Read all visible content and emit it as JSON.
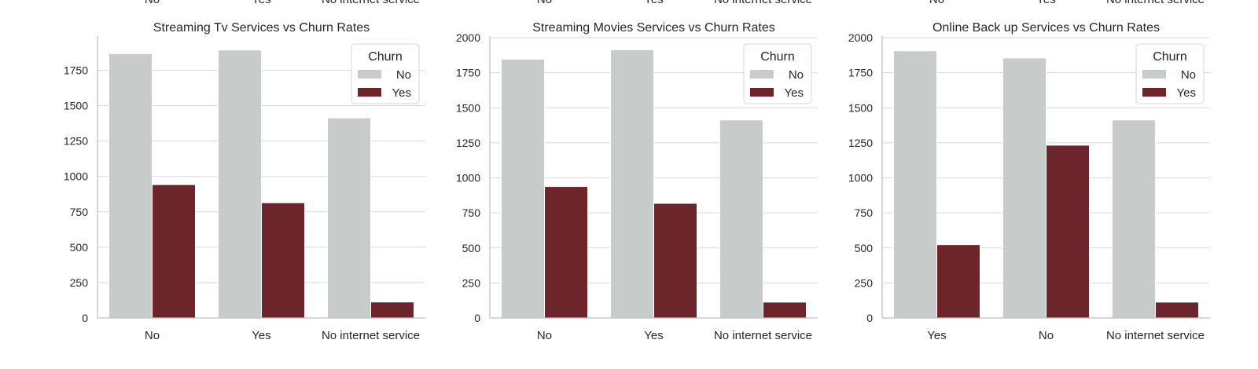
{
  "top_partial_labels": [
    [
      "No",
      "Yes",
      "No internet service"
    ],
    [
      "No",
      "Yes",
      "No internet service"
    ],
    [
      "No",
      "Yes",
      "No internet service"
    ]
  ],
  "chart_data": [
    {
      "type": "bar",
      "title": "Streaming Tv Services vs Churn Rates",
      "xlabel": "",
      "ylabel": "",
      "categories": [
        "No",
        "Yes",
        "No internet service"
      ],
      "series": [
        {
          "name": "No",
          "color": "#c7cbca",
          "values": [
            1868,
            1893,
            1413
          ]
        },
        {
          "name": "Yes",
          "color": "#6b252b",
          "values": [
            942,
            814,
            113
          ]
        }
      ],
      "ylim": [
        0,
        1980
      ],
      "yticks": [
        0,
        250,
        500,
        750,
        1000,
        1250,
        1500,
        1750
      ],
      "legend": {
        "title": "Churn",
        "entries": [
          "No",
          "Yes"
        ],
        "placement": "top-right"
      },
      "grid": "horizontal"
    },
    {
      "type": "bar",
      "title": "Streaming Movies Services vs Churn Rates",
      "xlabel": "",
      "ylabel": "",
      "categories": [
        "No",
        "Yes",
        "No internet service"
      ],
      "series": [
        {
          "name": "No",
          "color": "#c7cbca",
          "values": [
            1847,
            1914,
            1413
          ]
        },
        {
          "name": "Yes",
          "color": "#6b252b",
          "values": [
            938,
            818,
            113
          ]
        }
      ],
      "ylim": [
        0,
        2000
      ],
      "yticks": [
        0,
        250,
        500,
        750,
        1000,
        1250,
        1500,
        1750,
        2000
      ],
      "legend": {
        "title": "Churn",
        "entries": [
          "No",
          "Yes"
        ],
        "placement": "top-right"
      },
      "grid": "horizontal"
    },
    {
      "type": "bar",
      "title": "Online Back up Services vs Churn Rates",
      "xlabel": "",
      "ylabel": "",
      "categories": [
        "Yes",
        "No",
        "No internet service"
      ],
      "series": [
        {
          "name": "No",
          "color": "#c7cbca",
          "values": [
            1906,
            1855,
            1413
          ]
        },
        {
          "name": "Yes",
          "color": "#6b252b",
          "values": [
            523,
            1233,
            113
          ]
        }
      ],
      "ylim": [
        0,
        2000
      ],
      "yticks": [
        0,
        250,
        500,
        750,
        1000,
        1250,
        1500,
        1750,
        2000
      ],
      "legend": {
        "title": "Churn",
        "entries": [
          "No",
          "Yes"
        ],
        "placement": "top-right"
      },
      "grid": "horizontal"
    }
  ]
}
